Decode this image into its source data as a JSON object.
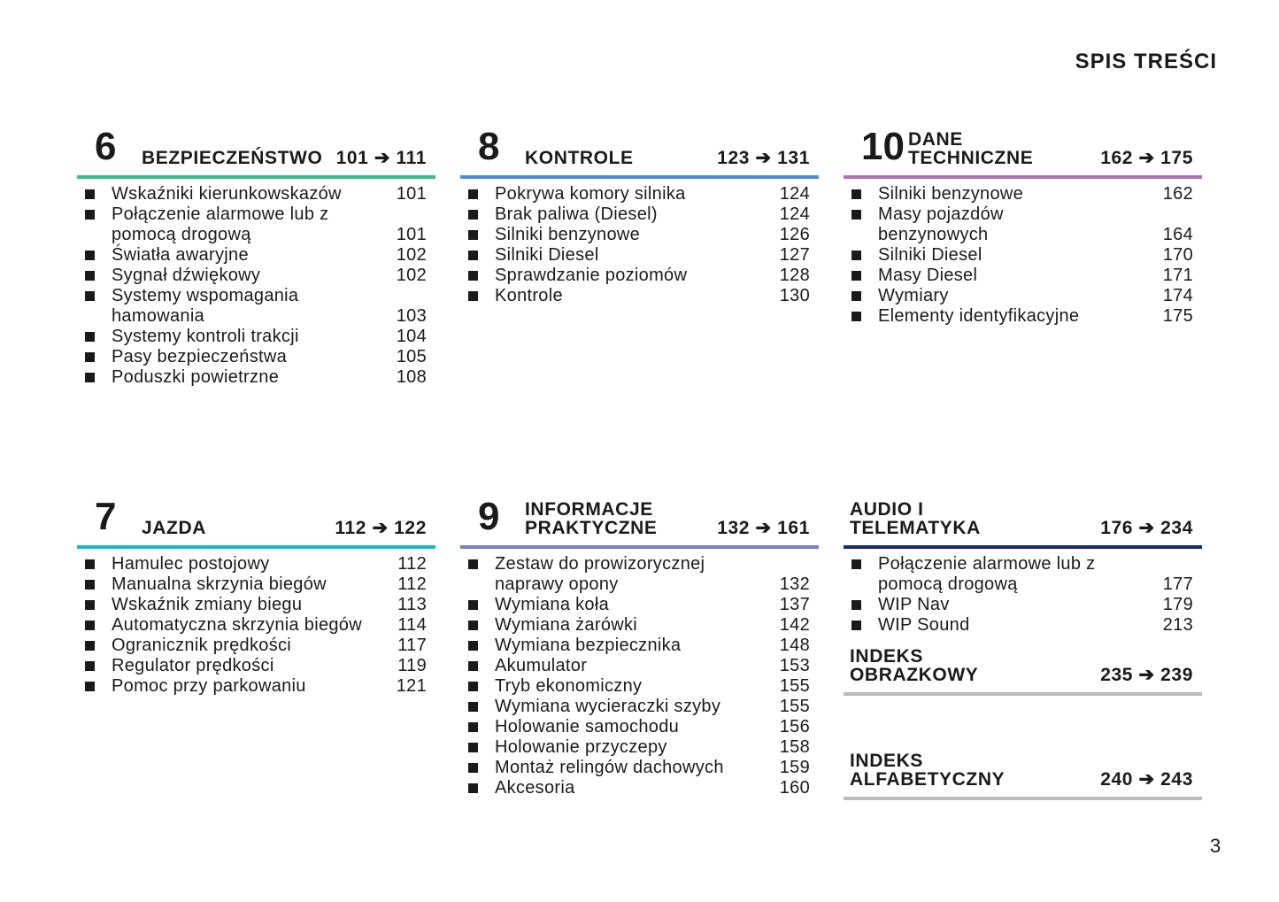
{
  "page_title": "SPIS TREŚCI",
  "page_number": "3",
  "sections": [
    {
      "number": "6",
      "title": "BEZPIECZEŃSTWO",
      "range": "101 ➔ 111",
      "color": "#3dba84",
      "pos": "tl",
      "items": [
        [
          "Wskaźniki kierunkowskazów",
          "101"
        ],
        [
          "Połączenie alarmowe lub z\npomocą drogową",
          "101"
        ],
        [
          "Światła awaryjne",
          "102"
        ],
        [
          "Sygnał dźwiękowy",
          "102"
        ],
        [
          "Systemy wspomagania\nhamowania",
          "103"
        ],
        [
          "Systemy kontroli trakcji",
          "104"
        ],
        [
          "Pasy bezpieczeństwa",
          "105"
        ],
        [
          "Poduszki powietrzne",
          "108"
        ]
      ]
    },
    {
      "number": "8",
      "title": "KONTROLE",
      "range": "123 ➔ 131",
      "color": "#4a8ed8",
      "pos": "tm",
      "items": [
        [
          "Pokrywa komory silnika",
          "124"
        ],
        [
          "Brak paliwa (Diesel)",
          "124"
        ],
        [
          "Silniki benzynowe",
          "126"
        ],
        [
          "Silniki Diesel",
          "127"
        ],
        [
          "Sprawdzanie poziomów",
          "128"
        ],
        [
          "Kontrole",
          "130"
        ]
      ]
    },
    {
      "number": "10",
      "title": "DANE\nTECHNICZNE",
      "range": "162 ➔ 175",
      "color": "#b06fb4",
      "pos": "tr",
      "items": [
        [
          "Silniki benzynowe",
          "162"
        ],
        [
          "Masy pojazdów\nbenzynowych",
          "164"
        ],
        [
          "Silniki Diesel",
          "170"
        ],
        [
          "Masy Diesel",
          "171"
        ],
        [
          "Wymiary",
          "174"
        ],
        [
          "Elementy identyfikacyjne",
          "175"
        ]
      ]
    },
    {
      "number": "7",
      "title": "JAZDA",
      "range": "112 ➔ 122",
      "color": "#19b4c8",
      "pos": "bl",
      "items": [
        [
          "Hamulec postojowy",
          "112"
        ],
        [
          "Manualna skrzynia biegów",
          "112"
        ],
        [
          "Wskaźnik zmiany biegu",
          "113"
        ],
        [
          "Automatyczna skrzynia biegów",
          "114"
        ],
        [
          "Ogranicznik prędkości",
          "117"
        ],
        [
          "Regulator prędkości",
          "119"
        ],
        [
          "Pomoc przy parkowaniu",
          "121"
        ]
      ]
    },
    {
      "number": "9",
      "title": "INFORMACJE\nPRAKTYCZNE",
      "range": "132 ➔ 161",
      "color": "#7a7ec4",
      "pos": "bm",
      "items": [
        [
          "Zestaw do prowizorycznej\nnaprawy opony",
          "132"
        ],
        [
          "Wymiana koła",
          "137"
        ],
        [
          "Wymiana żarówki",
          "142"
        ],
        [
          "Wymiana bezpiecznika",
          "148"
        ],
        [
          "Akumulator",
          "153"
        ],
        [
          "Tryb ekonomiczny",
          "155"
        ],
        [
          "Wymiana wycieraczki szyby",
          "155"
        ],
        [
          "Holowanie samochodu",
          "156"
        ],
        [
          "Holowanie przyczepy",
          "158"
        ],
        [
          "Montaż relingów dachowych",
          "159"
        ],
        [
          "Akcesoria",
          "160"
        ]
      ]
    },
    {
      "number": "",
      "title": "AUDIO I\nTELEMATYKA",
      "range": "176 ➔ 234",
      "color": "#172a6a",
      "pos": "br",
      "items": [
        [
          "Połączenie alarmowe lub z\npomocą drogową",
          "177"
        ],
        [
          "WIP Nav",
          "179"
        ],
        [
          "WIP Sound",
          "213"
        ]
      ]
    },
    {
      "number": "",
      "title": "INDEKS\nOBRAZKOWY",
      "range": "235 ➔ 239",
      "color": "#bcbcbc",
      "pos": "br2",
      "items": []
    },
    {
      "number": "",
      "title": "INDEKS\nALFABETYCZNY",
      "range": "240 ➔ 243",
      "color": "#bcbcbc",
      "pos": "br3",
      "items": []
    }
  ]
}
